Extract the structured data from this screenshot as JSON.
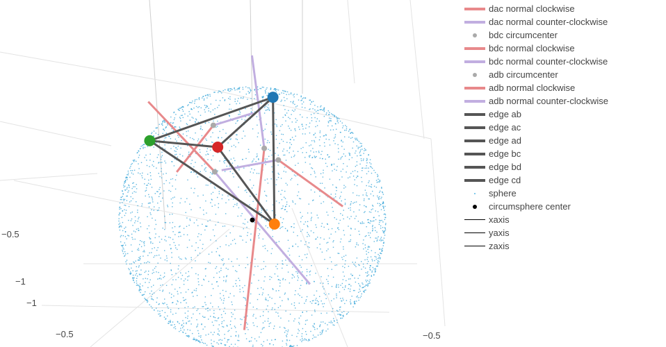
{
  "chart_data": {
    "type": "scatter3d",
    "title": "",
    "points": {
      "a": {
        "x": 0.0,
        "y": -0.45,
        "z": 0.82,
        "color": "#1f77b4"
      },
      "b": {
        "x": 0.45,
        "y": 0.75,
        "z": 0.35,
        "color": "#ff7f0e"
      },
      "c": {
        "x": -0.8,
        "y": 0.05,
        "z": 0.55,
        "color": "#2ca02c"
      },
      "d": {
        "x": -0.55,
        "y": -0.75,
        "z": 0.2,
        "color": "#d62728"
      }
    },
    "circumsphere_center": {
      "x": 0.0,
      "y": 0.0,
      "z": 0.0
    },
    "circumsphere_radius": 1.0,
    "sphere_sample_count": 3000,
    "circumcenters": {
      "dac": {
        "x": -0.45,
        "y": -0.38,
        "z": 0.55
      },
      "bdc": {
        "x": -0.3,
        "y": 0.0,
        "z": 0.35
      },
      "adb": {
        "x": 0.0,
        "y": -0.26,
        "z": 0.48
      },
      "abc": {
        "x": 0.28,
        "y": 0.2,
        "z": 0.62
      }
    },
    "normal_segments": [
      {
        "face": "dac",
        "dir": "cw",
        "from": {
          "x": -0.45,
          "y": -0.38,
          "z": 0.55
        },
        "to": {
          "x": -0.95,
          "y": -0.95,
          "z": -0.15
        }
      },
      {
        "face": "dac",
        "dir": "ccw",
        "from": {
          "x": -0.45,
          "y": -0.38,
          "z": 0.55
        },
        "to": {
          "x": 0.1,
          "y": 0.25,
          "z": 1.0
        }
      },
      {
        "face": "bdc",
        "dir": "cw",
        "from": {
          "x": -0.3,
          "y": 0.0,
          "z": 0.35
        },
        "to": {
          "x": -0.75,
          "y": 0.22,
          "z": 0.95
        }
      },
      {
        "face": "bdc",
        "dir": "ccw",
        "from": {
          "x": -0.3,
          "y": 0.0,
          "z": 0.35
        },
        "to": {
          "x": 0.35,
          "y": -0.3,
          "z": -0.6
        }
      },
      {
        "face": "adb",
        "dir": "cw",
        "from": {
          "x": 0.0,
          "y": -0.26,
          "z": 0.48
        },
        "to": {
          "x": 0.1,
          "y": 0.45,
          "z": -0.7
        }
      },
      {
        "face": "adb",
        "dir": "ccw",
        "from": {
          "x": 0.0,
          "y": -0.26,
          "z": 0.48
        },
        "to": {
          "x": -0.12,
          "y": -0.32,
          "z": 1.2
        }
      },
      {
        "face": "abc",
        "dir": "cw",
        "from": {
          "x": 0.28,
          "y": 0.2,
          "z": 0.62
        },
        "to": {
          "x": 1.05,
          "y": 0.9,
          "z": 0.65
        }
      },
      {
        "face": "abc",
        "dir": "ccw",
        "from": {
          "x": 0.28,
          "y": 0.2,
          "z": 0.62
        },
        "to": {
          "x": -0.3,
          "y": -0.15,
          "z": 0.3
        }
      }
    ],
    "edges": [
      [
        "a",
        "b"
      ],
      [
        "a",
        "c"
      ],
      [
        "a",
        "d"
      ],
      [
        "b",
        "c"
      ],
      [
        "b",
        "d"
      ],
      [
        "c",
        "d"
      ]
    ],
    "axes": {
      "x_range": [
        -1,
        1
      ],
      "y_range": [
        -1,
        1
      ],
      "z_range": [
        -1,
        1
      ],
      "grid": true,
      "visible_ticks": [
        {
          "axis": "y",
          "label": "−1"
        },
        {
          "axis": "x",
          "label": "−1"
        },
        {
          "axis": "y",
          "label": "−0.5"
        },
        {
          "axis": "x",
          "label": "−0.5"
        },
        {
          "axis": "z",
          "label": "−0.5"
        }
      ]
    },
    "legend_placement": "right",
    "legend": [
      {
        "name": "dac normal clockwise",
        "type": "line",
        "color": "#e8898b",
        "width": 4
      },
      {
        "name": "dac normal counter-clockwise",
        "type": "line",
        "color": "#c1aee0",
        "width": 4
      },
      {
        "name": "bdc circumcenter",
        "type": "dot",
        "color": "#aaaaaa",
        "size": 6
      },
      {
        "name": "bdc normal clockwise",
        "type": "line",
        "color": "#e8898b",
        "width": 4
      },
      {
        "name": "bdc normal counter-clockwise",
        "type": "line",
        "color": "#c1aee0",
        "width": 4
      },
      {
        "name": "adb circumcenter",
        "type": "dot",
        "color": "#aaaaaa",
        "size": 6
      },
      {
        "name": "adb normal clockwise",
        "type": "line",
        "color": "#e8898b",
        "width": 4
      },
      {
        "name": "adb normal counter-clockwise",
        "type": "line",
        "color": "#c1aee0",
        "width": 4
      },
      {
        "name": "edge ab",
        "type": "line",
        "color": "#555555",
        "width": 4
      },
      {
        "name": "edge ac",
        "type": "line",
        "color": "#555555",
        "width": 4
      },
      {
        "name": "edge ad",
        "type": "line",
        "color": "#555555",
        "width": 4
      },
      {
        "name": "edge bc",
        "type": "line",
        "color": "#555555",
        "width": 4
      },
      {
        "name": "edge bd",
        "type": "line",
        "color": "#555555",
        "width": 4
      },
      {
        "name": "edge cd",
        "type": "line",
        "color": "#555555",
        "width": 4
      },
      {
        "name": "sphere",
        "type": "dot",
        "color": "#55b8e6",
        "size": 2
      },
      {
        "name": "circumsphere center",
        "type": "dot",
        "color": "#000000",
        "size": 6
      },
      {
        "name": "xaxis",
        "type": "line",
        "color": "#000000",
        "width": 1
      },
      {
        "name": "yaxis",
        "type": "line",
        "color": "#000000",
        "width": 1
      },
      {
        "name": "zaxis",
        "type": "line",
        "color": "#000000",
        "width": 1
      }
    ]
  }
}
